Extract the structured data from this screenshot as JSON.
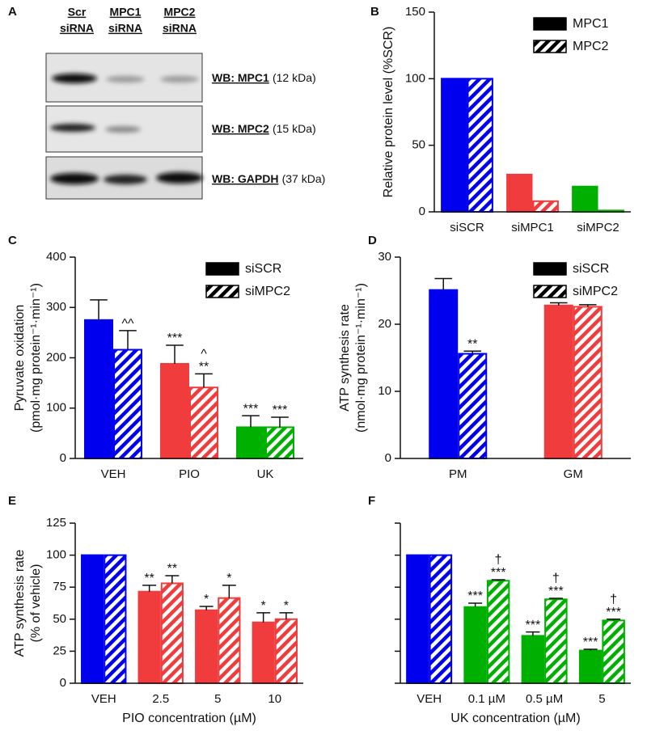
{
  "blot": {
    "panel": "A",
    "lanes": [
      [
        "Scr",
        "siRNA"
      ],
      [
        "MPC1",
        "siRNA"
      ],
      [
        "MPC2",
        "siRNA"
      ]
    ],
    "rows": [
      {
        "antibody": "WB: MPC1",
        "size": "(12 kDa)"
      },
      {
        "antibody": "WB: MPC2",
        "size": "(15 kDa)"
      },
      {
        "antibody": "WB: GAPDH",
        "size": "(37 kDa)"
      }
    ]
  },
  "chart_data": [
    {
      "type": "bar",
      "panel": "B",
      "ylabel": [
        "Relative protein level (%SCR)"
      ],
      "categories": [
        "siSCR",
        "siMPC1",
        "siMPC2"
      ],
      "colors": [
        "#0000ee",
        "#f03c3c",
        "#00b000"
      ],
      "series": [
        {
          "name": "MPC1",
          "hatch": false,
          "values": [
            100,
            28,
            19
          ]
        },
        {
          "name": "MPC2",
          "hatch": true,
          "values": [
            100,
            8,
            1
          ]
        }
      ],
      "ylim": [
        0,
        150
      ],
      "yticks": [
        0,
        50,
        100,
        150
      ],
      "grid": false,
      "legend": "upper right",
      "legend_color": "#000000"
    },
    {
      "type": "bar",
      "panel": "C",
      "ylabel": [
        "Pyruvate oxidation",
        "(pmol·mg protein⁻¹·min⁻¹)"
      ],
      "categories": [
        "VEH",
        "PIO",
        "UK"
      ],
      "colors": [
        "#0000ee",
        "#f03c3c",
        "#00b000"
      ],
      "series": [
        {
          "name": "siSCR",
          "hatch": false,
          "values": [
            275,
            188,
            62
          ],
          "errors": [
            40,
            37,
            23
          ],
          "annotations": [
            null,
            [
              "***"
            ],
            [
              "***"
            ]
          ]
        },
        {
          "name": "siMPC2",
          "hatch": true,
          "values": [
            216,
            141,
            62
          ],
          "errors": [
            38,
            27,
            20
          ],
          "annotations": [
            [
              "^^"
            ],
            [
              "^",
              "**"
            ],
            [
              "***"
            ]
          ]
        }
      ],
      "ylim": [
        0,
        400
      ],
      "yticks": [
        0,
        100,
        200,
        300,
        400
      ],
      "grid": false,
      "legend": "upper right",
      "legend_color": "#000000"
    },
    {
      "type": "bar",
      "panel": "D",
      "ylabel": [
        "ATP synthesis rate",
        "(nmol·mg protein⁻¹·min⁻¹)"
      ],
      "categories": [
        "PM",
        "GM"
      ],
      "colors": [
        "#0000ee",
        "#f03c3c"
      ],
      "series": [
        {
          "name": "siSCR",
          "hatch": false,
          "values": [
            25.1,
            22.8
          ],
          "errors": [
            1.7,
            0.4
          ]
        },
        {
          "name": "siMPC2",
          "hatch": true,
          "values": [
            15.6,
            22.6
          ],
          "errors": [
            0.4,
            0.3
          ],
          "annotations": [
            [
              "**"
            ],
            null
          ]
        }
      ],
      "ylim": [
        0,
        30
      ],
      "yticks": [
        0,
        10,
        20,
        30
      ],
      "grid": false,
      "legend": "upper right",
      "legend_color": "#000000"
    },
    {
      "type": "bar",
      "panel": "E",
      "ylabel": [
        "ATP synthesis rate",
        "(% of vehicle)"
      ],
      "xlabel": "PIO concentration (µM)",
      "categories": [
        "VEH",
        "2.5",
        "5",
        "10"
      ],
      "colors": [
        "#0000ee",
        "#f03c3c",
        "#f03c3c",
        "#f03c3c"
      ],
      "series": [
        {
          "hatch": false,
          "values": [
            100,
            71.5,
            57,
            47.5
          ],
          "errors": [
            null,
            5,
            3,
            7.5
          ],
          "annotations": [
            null,
            [
              "**"
            ],
            [
              "*"
            ],
            [
              "*"
            ]
          ]
        },
        {
          "hatch": true,
          "values": [
            100,
            78,
            66.5,
            50
          ],
          "errors": [
            null,
            6,
            10,
            5
          ],
          "annotations": [
            null,
            [
              "**"
            ],
            [
              "*"
            ],
            [
              "*"
            ]
          ]
        }
      ],
      "ylim": [
        0,
        125
      ],
      "yticks": [
        0,
        25,
        50,
        75,
        100,
        125
      ],
      "grid": false
    },
    {
      "type": "bar",
      "panel": "F",
      "xlabel": "UK concentration (µM)",
      "categories": [
        "VEH",
        "0.1 µM",
        "0.5 µM",
        "5"
      ],
      "colors": [
        "#0000ee",
        "#00b000",
        "#00b000",
        "#00b000"
      ],
      "series": [
        {
          "hatch": false,
          "values": [
            100,
            59.5,
            37,
            25.5
          ],
          "errors": [
            null,
            3,
            3,
            1
          ],
          "annotations": [
            null,
            [
              "***"
            ],
            [
              "***"
            ],
            [
              "***"
            ]
          ]
        },
        {
          "hatch": true,
          "values": [
            100,
            80,
            65.5,
            49
          ],
          "errors": [
            null,
            0.8,
            0.8,
            1
          ],
          "annotations": [
            null,
            [
              "†",
              "***"
            ],
            [
              "†",
              "***"
            ],
            [
              "†",
              "***"
            ]
          ]
        }
      ],
      "ylim": [
        0,
        125
      ],
      "yticks": [
        0,
        25,
        50,
        75,
        100,
        125
      ],
      "ytick_labels": false,
      "grid": false
    }
  ]
}
